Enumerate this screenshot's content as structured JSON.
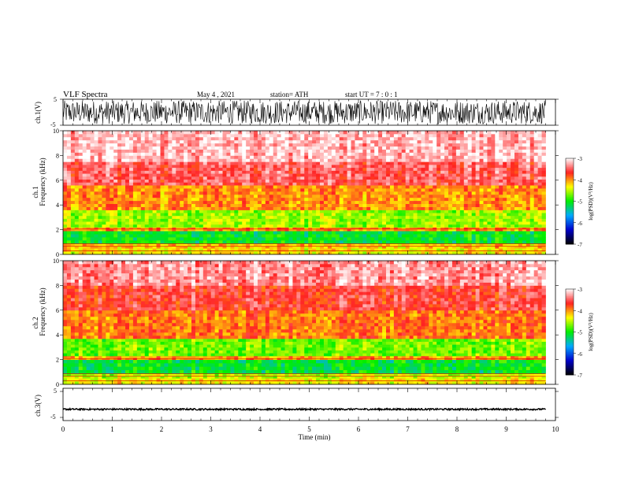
{
  "header": {
    "title": "VLF  Spectra",
    "date": "May 4  , 2021",
    "station": "station= ATH",
    "start": "start  UT  =    7  : 0   : 1"
  },
  "chart_data": [
    {
      "type": "line",
      "panel": "ch1-waveform",
      "ylabel": "ch.1(V)",
      "ylim": [
        -5,
        5
      ],
      "yticks": [
        "5",
        "-5"
      ],
      "xlim": [
        0,
        10
      ],
      "signal": {
        "amplitude_v": 4.5,
        "duration_min": 9.8,
        "description_color": "#000000"
      }
    },
    {
      "type": "heatmap",
      "panel": "ch1-spectrogram",
      "ylabel_top": "ch.1",
      "ylabel": "Frequency  (kHz)",
      "ylim": [
        0,
        10
      ],
      "yticks": [
        "0",
        "2",
        "4",
        "6",
        "8",
        "10"
      ],
      "xlim": [
        0,
        10
      ],
      "duration_min": 9.8,
      "colorbar": {
        "label": "log(PSD)(V²/Hz)",
        "range": [
          -7,
          -3
        ],
        "ticks": [
          "-3",
          "-4",
          "-5",
          "-6",
          "-7"
        ]
      },
      "bands_khz": [
        {
          "from": 0,
          "to": 0.5,
          "level": -4.3
        },
        {
          "from": 0.5,
          "to": 0.9,
          "level": -4.2
        },
        {
          "from": 0.9,
          "to": 1.9,
          "level": -5.1
        },
        {
          "from": 1.9,
          "to": 2.2,
          "level": -4.0
        },
        {
          "from": 2.2,
          "to": 3.6,
          "level": -4.6
        },
        {
          "from": 3.6,
          "to": 5.6,
          "level": -4.0
        },
        {
          "from": 5.6,
          "to": 7.5,
          "level": -3.5
        },
        {
          "from": 7.5,
          "to": 10,
          "level": -3.2
        }
      ]
    },
    {
      "type": "heatmap",
      "panel": "ch2-spectrogram",
      "ylabel_top": "ch.2",
      "ylabel": "Frequency  (kHz)",
      "ylim": [
        0,
        10
      ],
      "yticks": [
        "0",
        "2",
        "4",
        "6",
        "8",
        "10"
      ],
      "xlim": [
        0,
        10
      ],
      "duration_min": 9.8,
      "colorbar": {
        "label": "log(PSD)(V²/Hz)",
        "range": [
          -7,
          -3
        ],
        "ticks": [
          "-3",
          "-4",
          "-5",
          "-6",
          "-7"
        ]
      },
      "bands_khz": [
        {
          "from": 0,
          "to": 0.5,
          "level": -4.3
        },
        {
          "from": 0.5,
          "to": 0.9,
          "level": -4.5
        },
        {
          "from": 0.9,
          "to": 2.0,
          "level": -5.1
        },
        {
          "from": 2.0,
          "to": 2.3,
          "level": -4.0
        },
        {
          "from": 2.3,
          "to": 3.7,
          "level": -4.7
        },
        {
          "from": 3.7,
          "to": 6.0,
          "level": -3.9
        },
        {
          "from": 6.0,
          "to": 8.0,
          "level": -3.6
        },
        {
          "from": 8.0,
          "to": 10,
          "level": -3.3
        }
      ]
    },
    {
      "type": "line",
      "panel": "ch3-waveform",
      "ylabel": "ch.3(V)",
      "ylim": [
        -5,
        5
      ],
      "yticks": [
        "5",
        "-5"
      ],
      "xlim": [
        0,
        10
      ],
      "signal": {
        "offset_v": -1.5,
        "amplitude_v": 0.25,
        "duration_min": 9.8
      }
    }
  ],
  "xaxis": {
    "label": "Time  (min)",
    "ticks": [
      "0",
      "1",
      "2",
      "3",
      "4",
      "5",
      "6",
      "7",
      "8",
      "9",
      "10"
    ]
  },
  "colorscale": [
    "#000000",
    "#0000cc",
    "#00aaff",
    "#00ee00",
    "#ffff00",
    "#ff2222",
    "#ffffff"
  ]
}
